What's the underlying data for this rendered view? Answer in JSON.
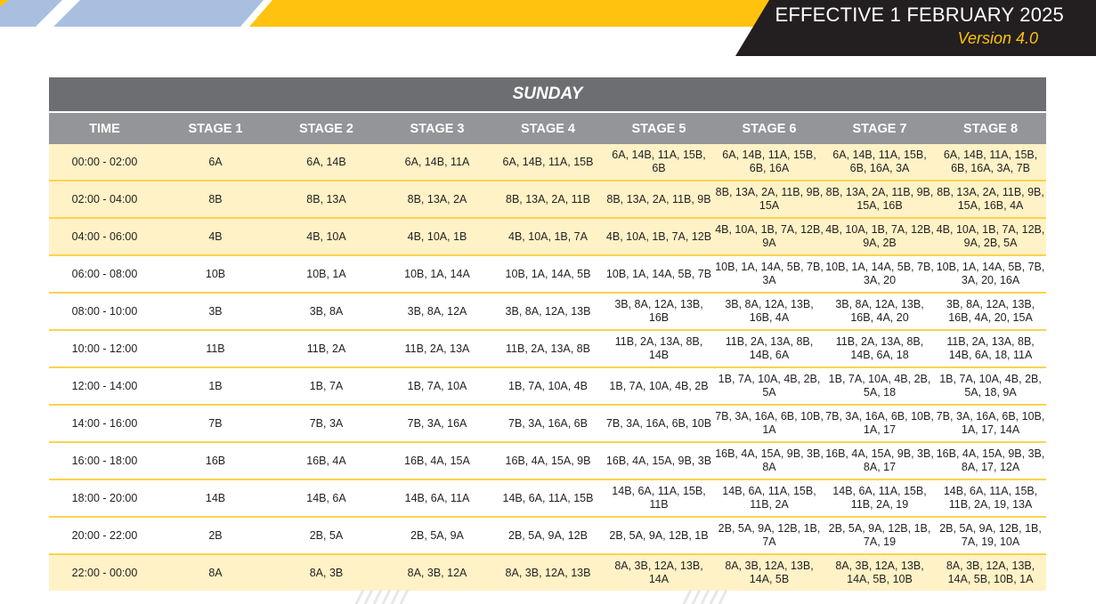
{
  "header": {
    "effective": "EFFECTIVE 1 FEBRUARY 2025",
    "version": "Version 4.0"
  },
  "table": {
    "day": "SUNDAY",
    "columns": [
      "TIME",
      "STAGE 1",
      "STAGE 2",
      "STAGE 3",
      "STAGE 4",
      "STAGE 5",
      "STAGE 6",
      "STAGE 7",
      "STAGE 8"
    ],
    "rows": [
      [
        "00:00 - 02:00",
        "6A",
        "6A, 14B",
        "6A, 14B, 11A",
        "6A, 14B, 11A, 15B",
        "6A, 14B, 11A, 15B, 6B",
        "6A, 14B, 11A, 15B, 6B, 16A",
        "6A, 14B, 11A, 15B, 6B, 16A, 3A",
        "6A, 14B, 11A, 15B, 6B, 16A, 3A, 7B"
      ],
      [
        "02:00 - 04:00",
        "8B",
        "8B, 13A",
        "8B, 13A, 2A",
        "8B, 13A, 2A, 11B",
        "8B, 13A, 2A, 11B, 9B",
        "8B, 13A, 2A, 11B, 9B, 15A",
        "8B, 13A, 2A, 11B, 9B, 15A, 16B",
        "8B, 13A, 2A, 11B, 9B, 15A, 16B, 4A"
      ],
      [
        "04:00 - 06:00",
        "4B",
        "4B, 10A",
        "4B, 10A, 1B",
        "4B, 10A, 1B, 7A",
        "4B, 10A, 1B, 7A, 12B",
        "4B, 10A, 1B, 7A, 12B, 9A",
        "4B, 10A, 1B, 7A, 12B, 9A, 2B",
        "4B, 10A, 1B, 7A, 12B, 9A, 2B, 5A"
      ],
      [
        "06:00 - 08:00",
        "10B",
        "10B, 1A",
        "10B, 1A, 14A",
        "10B, 1A, 14A, 5B",
        "10B, 1A, 14A, 5B, 7B",
        "10B, 1A, 14A, 5B, 7B, 3A",
        "10B, 1A, 14A, 5B, 7B, 3A, 20",
        "10B, 1A, 14A, 5B, 7B, 3A, 20, 16A"
      ],
      [
        "08:00 - 10:00",
        "3B",
        "3B, 8A",
        "3B, 8A, 12A",
        "3B, 8A, 12A, 13B",
        "3B, 8A, 12A, 13B, 16B",
        "3B, 8A, 12A, 13B, 16B, 4A",
        "3B, 8A, 12A, 13B, 16B, 4A, 20",
        "3B, 8A, 12A, 13B, 16B, 4A, 20, 15A"
      ],
      [
        "10:00 - 12:00",
        "11B",
        "11B, 2A",
        "11B, 2A, 13A",
        "11B, 2A, 13A, 8B",
        "11B, 2A, 13A, 8B, 14B",
        "11B, 2A, 13A, 8B, 14B, 6A",
        "11B, 2A, 13A, 8B, 14B, 6A, 18",
        "11B, 2A, 13A, 8B, 14B, 6A, 18, 11A"
      ],
      [
        "12:00 - 14:00",
        "1B",
        "1B, 7A",
        "1B, 7A, 10A",
        "1B, 7A, 10A, 4B",
        "1B, 7A, 10A, 4B, 2B",
        "1B, 7A, 10A, 4B, 2B, 5A",
        "1B, 7A, 10A, 4B, 2B, 5A, 18",
        "1B, 7A, 10A, 4B, 2B, 5A, 18, 9A"
      ],
      [
        "14:00 - 16:00",
        "7B",
        "7B, 3A",
        "7B, 3A, 16A",
        "7B, 3A, 16A, 6B",
        "7B, 3A, 16A, 6B, 10B",
        "7B, 3A, 16A, 6B, 10B, 1A",
        "7B, 3A, 16A, 6B, 10B, 1A, 17",
        "7B, 3A, 16A, 6B, 10B, 1A, 17, 14A"
      ],
      [
        "16:00 - 18:00",
        "16B",
        "16B, 4A",
        "16B, 4A, 15A",
        "16B, 4A, 15A, 9B",
        "16B, 4A, 15A, 9B, 3B",
        "16B, 4A, 15A, 9B, 3B, 8A",
        "16B, 4A, 15A, 9B, 3B, 8A, 17",
        "16B, 4A, 15A, 9B, 3B, 8A, 17, 12A"
      ],
      [
        "18:00 - 20:00",
        "14B",
        "14B, 6A",
        "14B, 6A, 11A",
        "14B, 6A, 11A, 15B",
        "14B, 6A, 11A, 15B, 11B",
        "14B, 6A, 11A, 15B, 11B, 2A",
        "14B, 6A, 11A, 15B, 11B, 2A, 19",
        "14B, 6A, 11A, 15B, 11B, 2A, 19, 13A"
      ],
      [
        "20:00 - 22:00",
        "2B",
        "2B, 5A",
        "2B, 5A, 9A",
        "2B, 5A, 9A, 12B",
        "2B, 5A, 9A, 12B, 1B",
        "2B, 5A, 9A, 12B, 1B, 7A",
        "2B, 5A, 9A, 12B, 1B, 7A, 19",
        "2B, 5A, 9A, 12B, 1B, 7A, 19, 10A"
      ],
      [
        "22:00 - 00:00",
        "8A",
        "8A, 3B",
        "8A, 3B, 12A",
        "8A, 3B, 12A, 13B",
        "8A, 3B, 12A, 13B, 14A",
        "8A, 3B, 12A, 13B, 14A, 5B",
        "8A, 3B, 12A, 13B, 14A, 5B, 10B",
        "8A, 3B, 12A, 13B, 14A, 5B, 10B, 1A"
      ]
    ],
    "shaded_rows": [
      0,
      1,
      2,
      11
    ],
    "colors": {
      "title_bar": "#6d6e71",
      "header_bar": "#939598",
      "shade": "#fff2c6",
      "divider": "#ffd24d",
      "accent": "#ffc20e"
    }
  }
}
